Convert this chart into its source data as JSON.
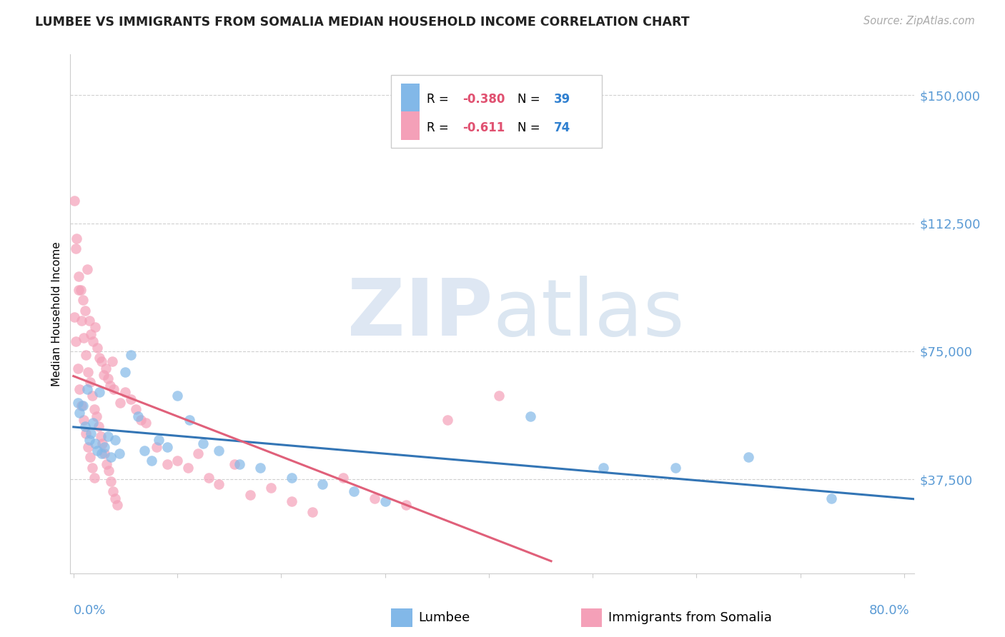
{
  "title": "LUMBEE VS IMMIGRANTS FROM SOMALIA MEDIAN HOUSEHOLD INCOME CORRELATION CHART",
  "source": "Source: ZipAtlas.com",
  "ylabel": "Median Household Income",
  "ytick_labels": [
    "$37,500",
    "$75,000",
    "$112,500",
    "$150,000"
  ],
  "ytick_values": [
    37500,
    75000,
    112500,
    150000
  ],
  "ymin": 10000,
  "ymax": 162000,
  "xmin": -0.003,
  "xmax": 0.81,
  "legend_lumbee": "Lumbee",
  "legend_somalia": "Immigrants from Somalia",
  "legend_r_lumbee": "R = -0.380",
  "legend_n_lumbee": "N = 39",
  "legend_r_somalia": "R =  -0.611",
  "legend_n_somalia": "N = 74",
  "blue_color": "#82b8e8",
  "pink_color": "#f4a0b8",
  "blue_line_color": "#3375b5",
  "pink_line_color": "#e0607a",
  "lumbee_x": [
    0.004,
    0.006,
    0.009,
    0.011,
    0.013,
    0.015,
    0.017,
    0.019,
    0.021,
    0.023,
    0.025,
    0.027,
    0.03,
    0.033,
    0.036,
    0.04,
    0.044,
    0.05,
    0.055,
    0.062,
    0.068,
    0.075,
    0.082,
    0.09,
    0.1,
    0.112,
    0.125,
    0.14,
    0.16,
    0.18,
    0.21,
    0.24,
    0.27,
    0.3,
    0.44,
    0.51,
    0.58,
    0.65,
    0.73
  ],
  "lumbee_y": [
    60000,
    57000,
    59000,
    53000,
    64000,
    49000,
    51000,
    54000,
    48000,
    46000,
    63000,
    45000,
    47000,
    50000,
    44000,
    49000,
    45000,
    69000,
    74000,
    56000,
    46000,
    43000,
    49000,
    47000,
    62000,
    55000,
    48000,
    46000,
    42000,
    41000,
    38000,
    36000,
    34000,
    31000,
    56000,
    41000,
    41000,
    44000,
    32000
  ],
  "somalia_x": [
    0.001,
    0.003,
    0.005,
    0.007,
    0.009,
    0.011,
    0.013,
    0.015,
    0.017,
    0.019,
    0.021,
    0.023,
    0.025,
    0.027,
    0.029,
    0.031,
    0.033,
    0.035,
    0.037,
    0.039,
    0.002,
    0.005,
    0.008,
    0.01,
    0.012,
    0.014,
    0.016,
    0.018,
    0.02,
    0.022,
    0.024,
    0.026,
    0.028,
    0.03,
    0.032,
    0.034,
    0.036,
    0.038,
    0.04,
    0.042,
    0.045,
    0.05,
    0.055,
    0.06,
    0.065,
    0.07,
    0.08,
    0.09,
    0.1,
    0.11,
    0.12,
    0.13,
    0.14,
    0.155,
    0.17,
    0.19,
    0.21,
    0.23,
    0.26,
    0.29,
    0.32,
    0.36,
    0.41,
    0.001,
    0.002,
    0.004,
    0.006,
    0.008,
    0.01,
    0.012,
    0.014,
    0.016,
    0.018,
    0.02
  ],
  "somalia_y": [
    119000,
    108000,
    97000,
    93000,
    90000,
    87000,
    99000,
    84000,
    80000,
    78000,
    82000,
    76000,
    73000,
    72000,
    68000,
    70000,
    67000,
    65000,
    72000,
    64000,
    105000,
    93000,
    84000,
    79000,
    74000,
    69000,
    66000,
    62000,
    58000,
    56000,
    53000,
    50000,
    48000,
    45000,
    42000,
    40000,
    37000,
    34000,
    32000,
    30000,
    60000,
    63000,
    61000,
    58000,
    55000,
    54000,
    47000,
    42000,
    43000,
    41000,
    45000,
    38000,
    36000,
    42000,
    33000,
    35000,
    31000,
    28000,
    38000,
    32000,
    30000,
    55000,
    62000,
    85000,
    78000,
    70000,
    64000,
    59000,
    55000,
    51000,
    47000,
    44000,
    41000,
    38000
  ]
}
